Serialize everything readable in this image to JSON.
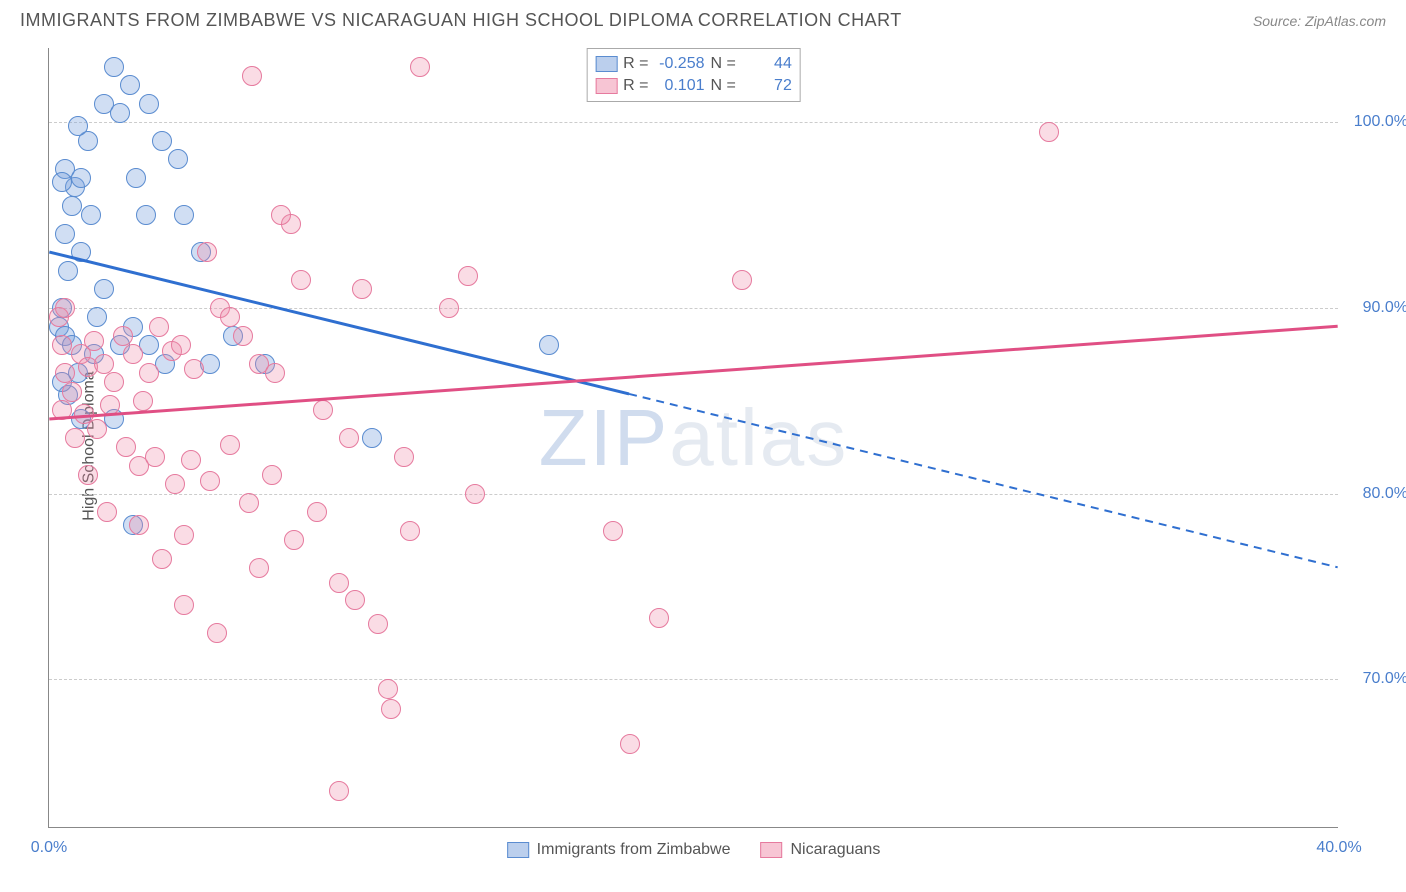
{
  "header": {
    "title": "IMMIGRANTS FROM ZIMBABWE VS NICARAGUAN HIGH SCHOOL DIPLOMA CORRELATION CHART",
    "source": "Source: ZipAtlas.com"
  },
  "watermark": {
    "prefix": "ZIP",
    "suffix": "atlas"
  },
  "chart": {
    "type": "scatter",
    "ylabel": "High School Diploma",
    "background_color": "#ffffff",
    "grid_color": "#cccccc",
    "axis_color": "#888888",
    "text_color": "#555555",
    "value_color": "#4a7ecc",
    "xlim": [
      0,
      40
    ],
    "ylim": [
      62,
      104
    ],
    "xticks": [
      {
        "v": 0,
        "label": "0.0%"
      },
      {
        "v": 40,
        "label": "40.0%"
      }
    ],
    "yticks": [
      {
        "v": 70,
        "label": "70.0%"
      },
      {
        "v": 80,
        "label": "80.0%"
      },
      {
        "v": 90,
        "label": "90.0%"
      },
      {
        "v": 100,
        "label": "100.0%"
      }
    ],
    "series": [
      {
        "key": "zimbabwe",
        "label": "Immigrants from Zimbabwe",
        "color_fill": "rgba(120,160,220,0.35)",
        "color_stroke": "#5a8cd0",
        "line_color": "#2f6fd0",
        "r": -0.258,
        "n": 44,
        "trend": {
          "x1": 0,
          "y1": 93,
          "x_solid_end": 18,
          "x2": 40,
          "y2": 76
        },
        "points": [
          [
            0.3,
            89
          ],
          [
            0.4,
            90
          ],
          [
            0.5,
            88.5
          ],
          [
            0.6,
            92
          ],
          [
            0.5,
            94
          ],
          [
            0.7,
            95.5
          ],
          [
            0.8,
            96.5
          ],
          [
            0.5,
            97.5
          ],
          [
            1.0,
            93
          ],
          [
            1.3,
            95
          ],
          [
            1.0,
            97
          ],
          [
            1.2,
            99
          ],
          [
            1.7,
            101
          ],
          [
            2.0,
            103
          ],
          [
            2.2,
            100.5
          ],
          [
            2.5,
            102
          ],
          [
            2.7,
            97
          ],
          [
            3.0,
            95
          ],
          [
            3.1,
            101
          ],
          [
            4.0,
            98
          ],
          [
            4.2,
            95
          ],
          [
            4.7,
            93
          ],
          [
            1.7,
            91
          ],
          [
            0.7,
            88
          ],
          [
            0.9,
            86.5
          ],
          [
            1.4,
            87.5
          ],
          [
            2.2,
            88
          ],
          [
            2.6,
            89
          ],
          [
            3.1,
            88
          ],
          [
            3.6,
            87
          ],
          [
            5.7,
            88.5
          ],
          [
            5.0,
            87
          ],
          [
            2.0,
            84
          ],
          [
            2.6,
            78.3
          ],
          [
            6.7,
            87
          ],
          [
            10.0,
            83
          ],
          [
            15.5,
            88
          ],
          [
            0.6,
            85.3
          ],
          [
            1.0,
            84
          ],
          [
            0.4,
            86
          ],
          [
            1.5,
            89.5
          ],
          [
            0.4,
            96.8
          ],
          [
            0.9,
            99.8
          ],
          [
            3.5,
            99
          ]
        ]
      },
      {
        "key": "nicaraguans",
        "label": "Nicaraguans",
        "color_fill": "rgba(240,140,170,0.3)",
        "color_stroke": "#e67a9e",
        "line_color": "#e04f84",
        "r": 0.101,
        "n": 72,
        "trend": {
          "x1": 0,
          "y1": 84,
          "x_solid_end": 40,
          "x2": 40,
          "y2": 89
        },
        "points": [
          [
            0.3,
            89.5
          ],
          [
            0.4,
            88
          ],
          [
            0.5,
            90
          ],
          [
            0.5,
            86.5
          ],
          [
            0.7,
            85.5
          ],
          [
            1.0,
            87.5
          ],
          [
            1.2,
            86.8
          ],
          [
            1.4,
            88.2
          ],
          [
            1.7,
            87
          ],
          [
            2.0,
            86
          ],
          [
            2.3,
            88.5
          ],
          [
            2.6,
            87.5
          ],
          [
            2.9,
            85
          ],
          [
            3.1,
            86.5
          ],
          [
            3.4,
            89
          ],
          [
            3.8,
            87.7
          ],
          [
            4.1,
            88
          ],
          [
            4.5,
            86.7
          ],
          [
            4.9,
            93
          ],
          [
            5.3,
            90
          ],
          [
            5.6,
            89.5
          ],
          [
            6.0,
            88.5
          ],
          [
            6.5,
            87
          ],
          [
            7.0,
            86.5
          ],
          [
            7.5,
            94.5
          ],
          [
            7.2,
            95
          ],
          [
            11.5,
            103
          ],
          [
            9.7,
            91
          ],
          [
            12.4,
            90
          ],
          [
            13.0,
            91.7
          ],
          [
            21.5,
            91.5
          ],
          [
            31.0,
            99.5
          ],
          [
            1.1,
            84.3
          ],
          [
            1.5,
            83.5
          ],
          [
            1.9,
            84.8
          ],
          [
            2.4,
            82.5
          ],
          [
            2.8,
            81.5
          ],
          [
            3.3,
            82
          ],
          [
            3.9,
            80.5
          ],
          [
            4.4,
            81.8
          ],
          [
            5.0,
            80.7
          ],
          [
            5.6,
            82.6
          ],
          [
            6.2,
            79.5
          ],
          [
            6.9,
            81
          ],
          [
            7.6,
            77.5
          ],
          [
            8.3,
            79
          ],
          [
            9.0,
            75.2
          ],
          [
            9.5,
            74.3
          ],
          [
            10.2,
            73
          ],
          [
            10.5,
            69.5
          ],
          [
            10.6,
            68.4
          ],
          [
            11.2,
            78
          ],
          [
            13.2,
            80
          ],
          [
            17.5,
            78
          ],
          [
            18.0,
            66.5
          ],
          [
            18.9,
            73.3
          ],
          [
            9.0,
            64
          ],
          [
            4.2,
            74
          ],
          [
            5.2,
            72.5
          ],
          [
            6.5,
            76
          ],
          [
            2.8,
            78.3
          ],
          [
            3.5,
            76.5
          ],
          [
            4.2,
            77.8
          ],
          [
            8.5,
            84.5
          ],
          [
            9.3,
            83
          ],
          [
            11.0,
            82
          ],
          [
            1.8,
            79
          ],
          [
            1.2,
            81
          ],
          [
            0.8,
            83
          ],
          [
            0.4,
            84.5
          ],
          [
            7.8,
            91.5
          ],
          [
            6.3,
            102.5
          ]
        ]
      }
    ]
  },
  "corr_box": {
    "rows": [
      {
        "swatch": "blue",
        "r_label": "R =",
        "r": "-0.258",
        "n_label": "N =",
        "n": "44"
      },
      {
        "swatch": "pink",
        "r_label": "R =",
        "r": "0.101",
        "n_label": "N =",
        "n": "72"
      }
    ]
  },
  "legend": [
    {
      "swatch": "blue",
      "label": "Immigrants from Zimbabwe"
    },
    {
      "swatch": "pink",
      "label": "Nicaraguans"
    }
  ]
}
